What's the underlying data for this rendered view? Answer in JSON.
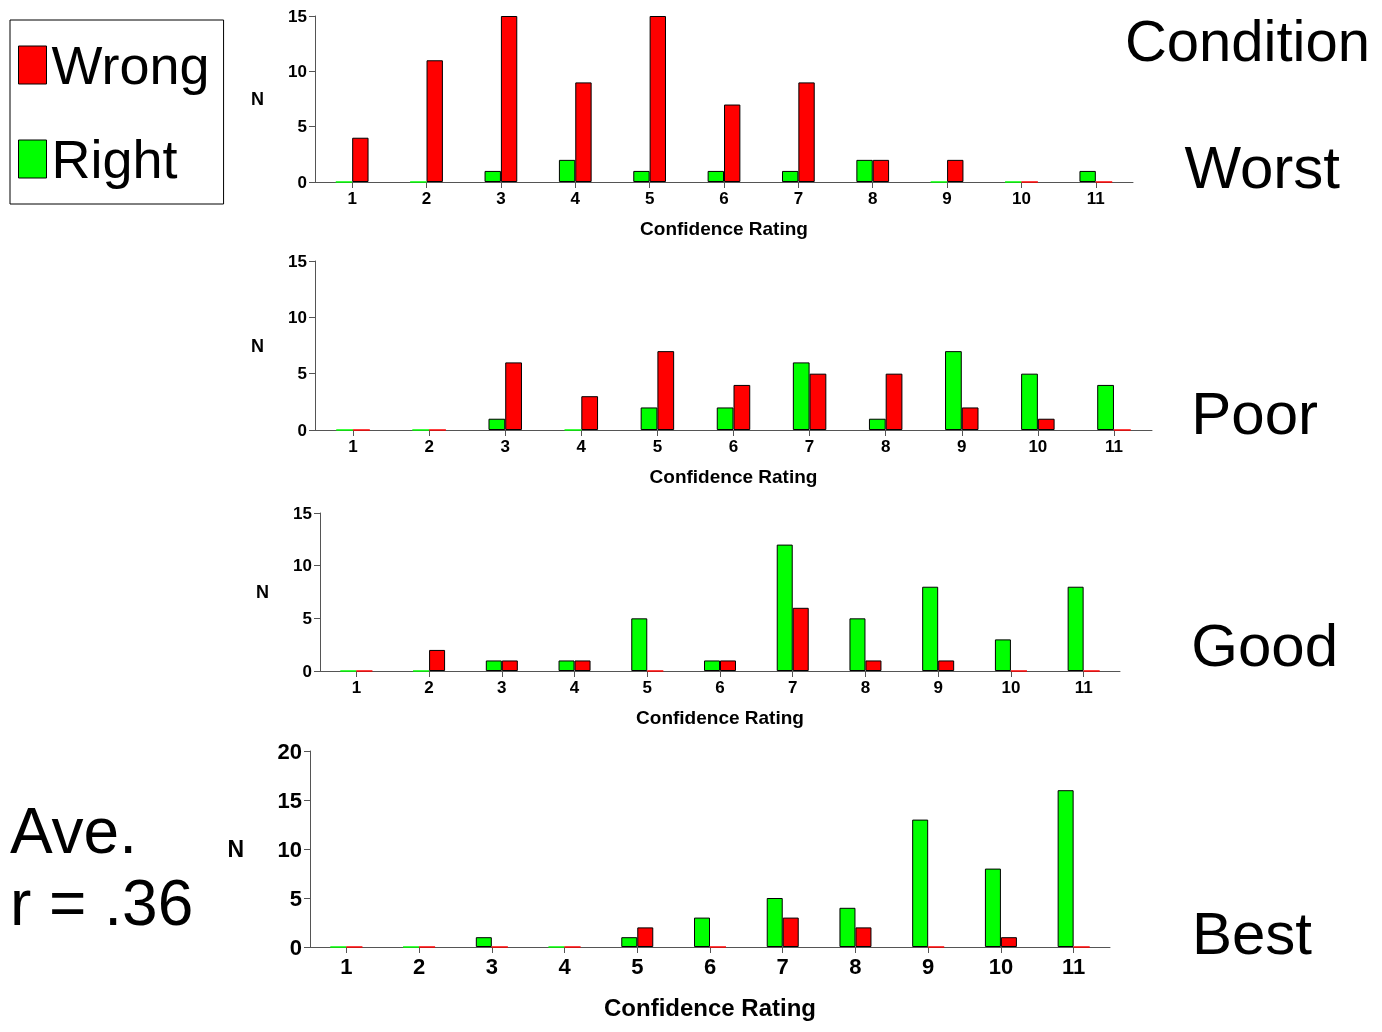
{
  "chart_data": [
    {
      "type": "bar",
      "xlabel": "Confidence Rating",
      "ylabel": "N",
      "annotations": [
        "Condition",
        "Worst"
      ],
      "categories": [
        "1",
        "2",
        "3",
        "4",
        "5",
        "6",
        "7",
        "8",
        "9",
        "10",
        "11"
      ],
      "ylim": [
        0,
        15
      ],
      "yticks": [
        0,
        5,
        10,
        15
      ],
      "grid": false,
      "legend": "left",
      "series": [
        {
          "name": "Right",
          "color": "#00ff00",
          "values": [
            0,
            0,
            1,
            2,
            1,
            1,
            1,
            2,
            0,
            0,
            1
          ]
        },
        {
          "name": "Wrong",
          "color": "#ff0000",
          "values": [
            4,
            11,
            15,
            9,
            15,
            7,
            9,
            2,
            2,
            0,
            0
          ]
        }
      ]
    },
    {
      "type": "bar",
      "xlabel": "Confidence Rating",
      "ylabel": "N",
      "annotations": [
        "Poor"
      ],
      "categories": [
        "1",
        "2",
        "3",
        "4",
        "5",
        "6",
        "7",
        "8",
        "9",
        "10",
        "11"
      ],
      "ylim": [
        0,
        15
      ],
      "yticks": [
        0,
        5,
        10,
        15
      ],
      "grid": false,
      "legend": false,
      "series": [
        {
          "color": "#00ff00",
          "values": [
            0,
            0,
            1,
            0,
            2,
            2,
            6,
            1,
            7,
            5,
            4
          ]
        },
        {
          "color": "#ff0000",
          "values": [
            0,
            0,
            6,
            3,
            7,
            4,
            5,
            5,
            2,
            1,
            0
          ]
        }
      ]
    },
    {
      "type": "bar",
      "xlabel": "Confidence Rating",
      "ylabel": "N",
      "annotations": [
        "Good"
      ],
      "categories": [
        "1",
        "2",
        "3",
        "4",
        "5",
        "6",
        "7",
        "8",
        "9",
        "10",
        "11"
      ],
      "ylim": [
        0,
        15
      ],
      "yticks": [
        0,
        5,
        10,
        15
      ],
      "grid": false,
      "legend": false,
      "series": [
        {
          "color": "#00ff00",
          "values": [
            0,
            0,
            1,
            1,
            5,
            1,
            12,
            5,
            8,
            3,
            8
          ]
        },
        {
          "color": "#ff0000",
          "values": [
            0,
            2,
            1,
            1,
            0,
            1,
            6,
            1,
            1,
            0,
            0
          ]
        }
      ]
    },
    {
      "type": "bar",
      "xlabel": "Confidence Rating",
      "ylabel": "N",
      "annotations": [
        "Best",
        "Ave.\nr = .36"
      ],
      "categories": [
        "1",
        "2",
        "3",
        "4",
        "5",
        "6",
        "7",
        "8",
        "9",
        "10",
        "11"
      ],
      "ylim": [
        0,
        20
      ],
      "yticks": [
        0,
        5,
        10,
        15,
        20
      ],
      "grid": false,
      "legend": false,
      "series": [
        {
          "color": "#00ff00",
          "values": [
            0,
            0,
            1,
            0,
            1,
            3,
            5,
            4,
            13,
            8,
            16
          ]
        },
        {
          "color": "#ff0000",
          "values": [
            0,
            0,
            0,
            0,
            2,
            0,
            3,
            2,
            0,
            1,
            0
          ]
        }
      ]
    }
  ]
}
